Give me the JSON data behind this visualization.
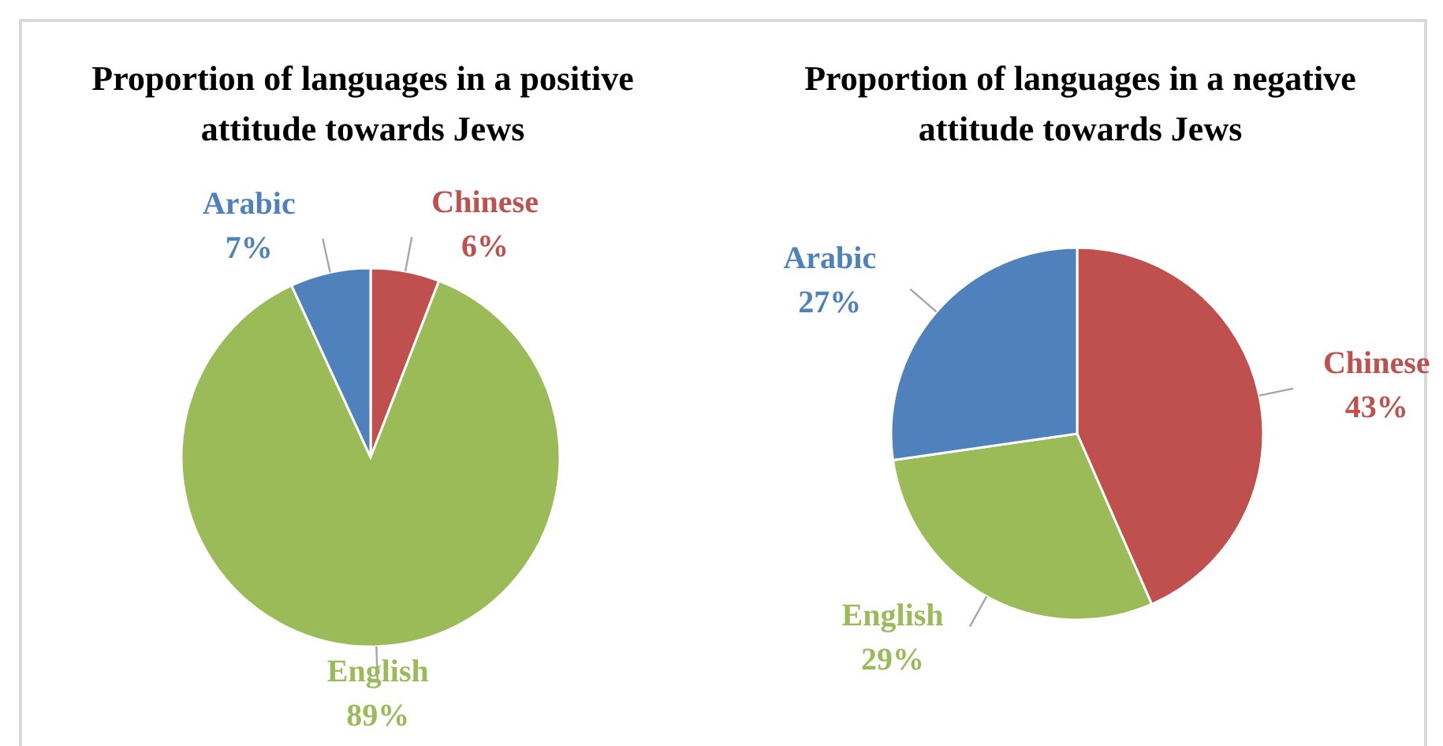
{
  "chart_data": [
    {
      "type": "pie",
      "title": "Proportion of languages in a positive attitude towards Jews",
      "categories": [
        "Chinese",
        "English",
        "Arabic"
      ],
      "values": [
        6,
        89,
        7
      ],
      "value_labels": [
        "6%",
        "89%",
        "7%"
      ],
      "colors": [
        "#c0504d",
        "#9bbb59",
        "#4f81bd"
      ],
      "legend": false
    },
    {
      "type": "pie",
      "title": "Proportion of languages in a negative attitude towards Jews",
      "categories": [
        "Chinese",
        "English",
        "Arabic"
      ],
      "values": [
        43,
        29,
        27
      ],
      "value_labels": [
        "43%",
        "29%",
        "27%"
      ],
      "colors": [
        "#c0504d",
        "#9bbb59",
        "#4f81bd"
      ],
      "legend": false
    }
  ]
}
